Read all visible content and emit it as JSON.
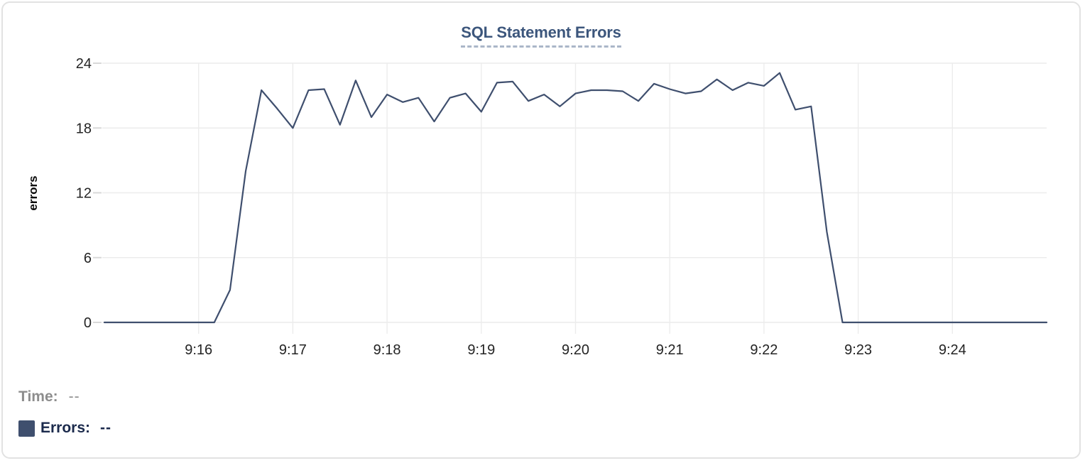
{
  "chart": {
    "title": "SQL Statement Errors"
  },
  "tooltip": {
    "time_label": "Time:",
    "time_value": "--",
    "errors_label": "Errors:",
    "errors_value": "--"
  },
  "colors": {
    "series_navy": "#3f4f6e",
    "title_blue": "#3c567c",
    "legend_text_navy": "#1b2a4c",
    "muted_gray": "#8d8d8d",
    "grid_gray": "#ececec"
  },
  "chart_data": {
    "type": "line",
    "title": "SQL Statement Errors",
    "xlabel": "",
    "ylabel": "errors",
    "ylim": [
      0,
      24
    ],
    "y_ticks": [
      0,
      6,
      12,
      18,
      24
    ],
    "x_tick_labels": [
      "9:16",
      "9:17",
      "9:18",
      "9:19",
      "9:20",
      "9:21",
      "9:22",
      "9:23",
      "9:24"
    ],
    "x_start": "9:15:00",
    "x_end": "9:25:00",
    "sample_interval_seconds": 10,
    "grid": true,
    "legend_position": "below-left",
    "series": [
      {
        "name": "Errors",
        "color": "#3f4f6e",
        "values": [
          0,
          0,
          0,
          0,
          0,
          0,
          0,
          0,
          3,
          14,
          21.5,
          19.8,
          18,
          21.5,
          21.6,
          18.3,
          22.4,
          19,
          21.1,
          20.4,
          20.8,
          18.6,
          20.8,
          21.2,
          19.5,
          22.2,
          22.3,
          20.5,
          21.1,
          20,
          21.2,
          21.5,
          21.5,
          21.4,
          20.5,
          22.1,
          21.6,
          21.2,
          21.4,
          22.5,
          21.5,
          22.2,
          21.9,
          23.1,
          19.7,
          20,
          8.4,
          0,
          0,
          0,
          0,
          0,
          0,
          0,
          0,
          0,
          0,
          0,
          0,
          0,
          0
        ]
      }
    ]
  }
}
